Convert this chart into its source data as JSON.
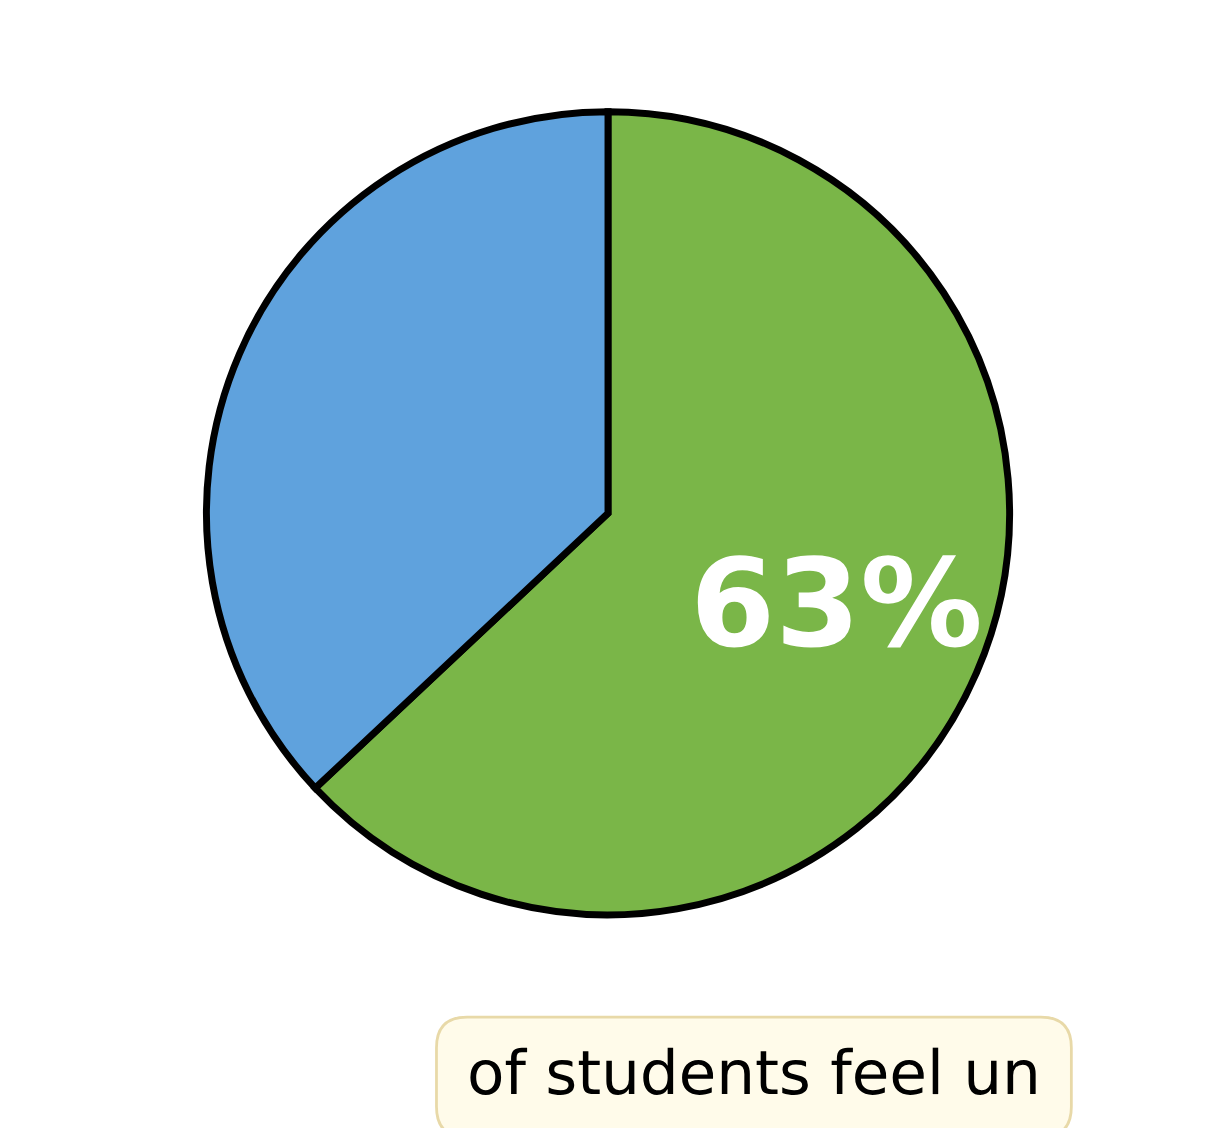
{
  "chart_data": {
    "type": "pie",
    "categories": [
      null,
      null
    ],
    "values": [
      63,
      37
    ],
    "colors": [
      "#7ab648",
      "#5fa2dd"
    ],
    "value_labels": [
      "63%",
      null
    ],
    "annotations": [
      "of students feel un"
    ]
  }
}
